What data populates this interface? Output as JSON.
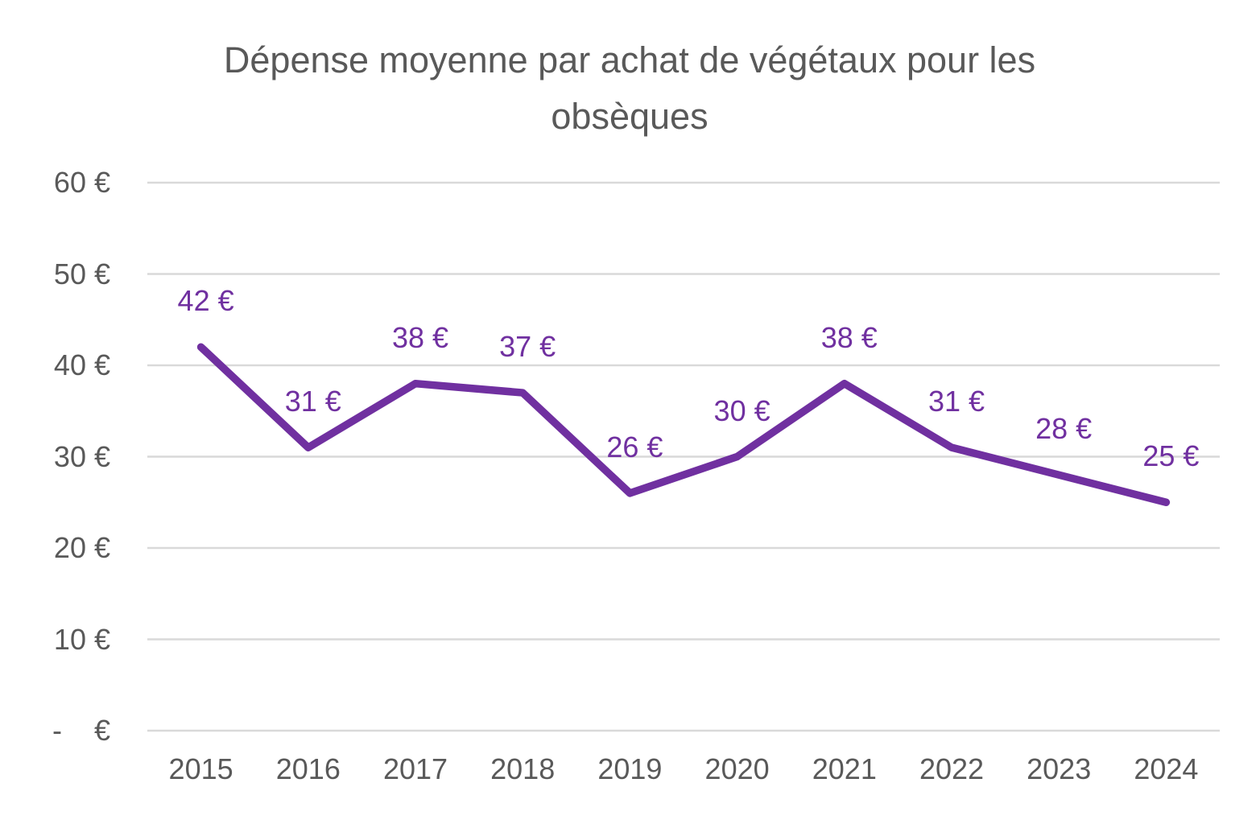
{
  "chart_data": {
    "type": "line",
    "title": "Dépense moyenne par achat de végétaux pour les obsèques",
    "categories": [
      "2015",
      "2016",
      "2017",
      "2018",
      "2019",
      "2020",
      "2021",
      "2022",
      "2023",
      "2024"
    ],
    "values": [
      42,
      31,
      38,
      37,
      26,
      30,
      38,
      31,
      28,
      25
    ],
    "data_labels": [
      "42 €",
      "31 €",
      "38 €",
      "37 €",
      "26 €",
      "30 €",
      "38 €",
      "31 €",
      "28 €",
      "25 €"
    ],
    "xlabel": "",
    "ylabel": "",
    "y_axis": {
      "min": 0,
      "max": 60,
      "ticks": [
        {
          "value": 60,
          "label": "60 €"
        },
        {
          "value": 50,
          "label": "50 €"
        },
        {
          "value": 40,
          "label": "40 €"
        },
        {
          "value": 30,
          "label": "30 €"
        },
        {
          "value": 20,
          "label": "20 €"
        },
        {
          "value": 10,
          "label": "10 €"
        },
        {
          "value": 0,
          "label": "-    €"
        }
      ]
    },
    "grid": true,
    "legend_position": "none",
    "colors": {
      "line": "#7030A0",
      "data_label": "#7030A0",
      "axis_text": "#595959",
      "title_text": "#595959",
      "gridline": "#D9D9D9",
      "background": "#FFFFFF"
    }
  }
}
